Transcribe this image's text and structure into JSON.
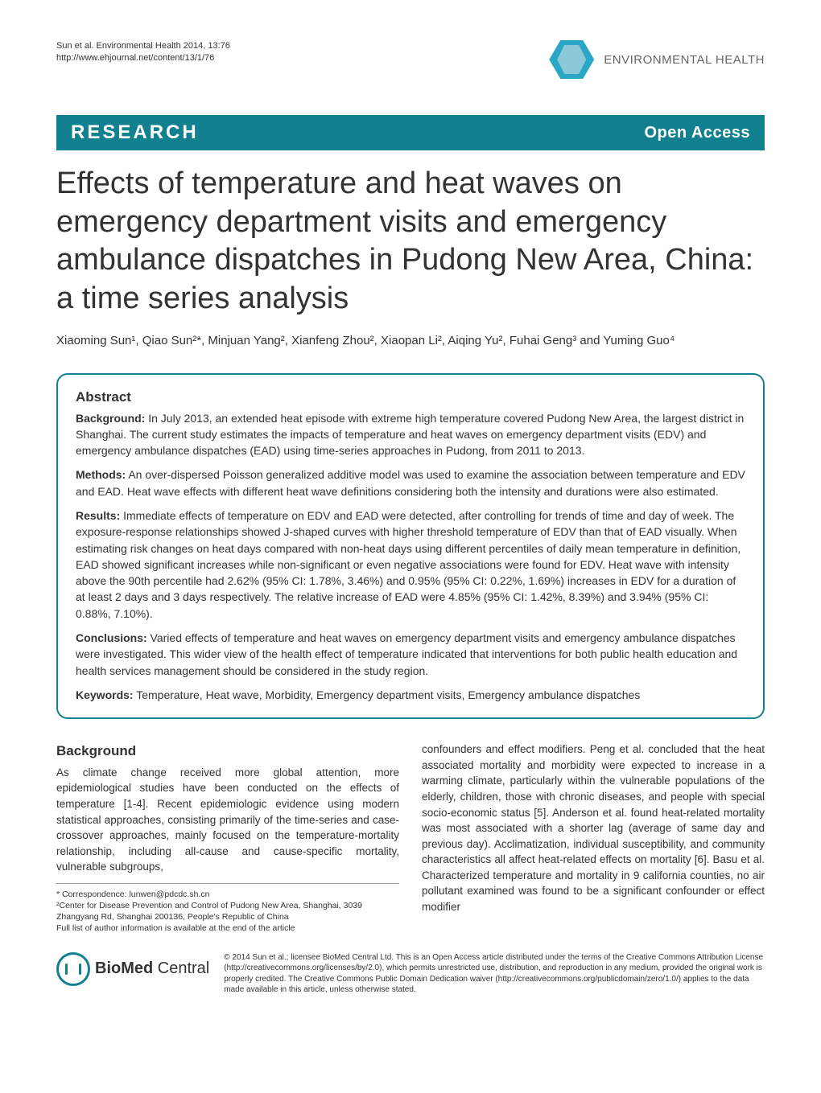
{
  "header": {
    "citation_line1": "Sun et al. Environmental Health 2014, 13:76",
    "citation_line2": "http://www.ehjournal.net/content/13/1/76",
    "journal_name": "ENVIRONMENTAL HEALTH"
  },
  "banner": {
    "left": "RESEARCH",
    "right": "Open Access"
  },
  "title": "Effects of temperature and heat waves on emergency department visits and emergency ambulance dispatches in Pudong New Area, China: a time series analysis",
  "authors_html": "Xiaoming Sun¹, Qiao Sun²*, Minjuan Yang², Xianfeng Zhou², Xiaopan Li², Aiqing Yu², Fuhai Geng³ and Yuming Guo⁴",
  "abstract": {
    "heading": "Abstract",
    "background_label": "Background:",
    "background_text": " In July 2013, an extended heat episode with extreme high temperature covered Pudong New Area, the largest district in Shanghai. The current study estimates the impacts of temperature and heat waves on emergency department visits (EDV) and emergency ambulance dispatches (EAD) using time-series approaches in Pudong, from 2011 to 2013.",
    "methods_label": "Methods:",
    "methods_text": " An over-dispersed Poisson generalized additive model was used to examine the association between temperature and EDV and EAD. Heat wave effects with different heat wave definitions considering both the intensity and durations were also estimated.",
    "results_label": "Results:",
    "results_text": " Immediate effects of temperature on EDV and EAD were detected, after controlling for trends of time and day of week. The exposure-response relationships showed J-shaped curves with higher threshold temperature of EDV than that of EAD visually. When estimating risk changes on heat days compared with non-heat days using different percentiles of daily mean temperature in definition, EAD showed significant increases while non-significant or even negative associations were found for EDV. Heat wave with intensity above the 90th percentile had 2.62% (95% CI: 1.78%, 3.46%) and 0.95% (95% CI: 0.22%, 1.69%) increases in EDV for a duration of at least 2 days and 3 days respectively. The relative increase of EAD were 4.85% (95% CI: 1.42%, 8.39%) and 3.94% (95% CI: 0.88%, 7.10%).",
    "conclusions_label": "Conclusions:",
    "conclusions_text": " Varied effects of temperature and heat waves on emergency department visits and emergency ambulance dispatches were investigated. This wider view of the health effect of temperature indicated that interventions for both public health education and health services management should be considered in the study region.",
    "keywords_label": "Keywords:",
    "keywords_text": " Temperature, Heat wave, Morbidity, Emergency department visits, Emergency ambulance dispatches"
  },
  "body": {
    "background_heading": "Background",
    "col1_p1": "As climate change received more global attention, more epidemiological studies have been conducted on the effects of temperature [1-4]. Recent epidemiologic evidence using modern statistical approaches, consisting primarily of the time-series and case-crossover approaches, mainly focused on the temperature-mortality relationship, including all-cause and cause-specific mortality, vulnerable subgroups,",
    "col2_p1": "confounders and effect modifiers. Peng et al. concluded that the heat associated mortality and morbidity were expected to increase in a warming climate, particularly within the vulnerable populations of the elderly, children, those with chronic diseases, and people with special socio-economic status [5]. Anderson et al. found heat-related mortality was most associated with a shorter lag (average of same day and previous day). Acclimatization, individual susceptibility, and community characteristics all affect heat-related effects on mortality [6]. Basu et al. Characterized temperature and mortality in 9 california counties, no air pollutant examined was found to be a significant confounder or effect modifier"
  },
  "footnotes": {
    "correspondence": "* Correspondence: lunwen@pdcdc.sh.cn",
    "affil2": "²Center for Disease Prevention and Control of Pudong New Area, Shanghai, 3039 Zhangyang Rd, Shanghai 200136, People's Republic of China",
    "affil_full": "Full list of author information is available at the end of the article"
  },
  "footer": {
    "bmc_text_1": "BioMed",
    "bmc_text_2": " Central",
    "license": "© 2014 Sun et al.; licensee BioMed Central Ltd. This is an Open Access article distributed under the terms of the Creative Commons Attribution License (http://creativecommons.org/licenses/by/2.0), which permits unrestricted use, distribution, and reproduction in any medium, provided the original work is properly credited. The Creative Commons Public Domain Dedication waiver (http://creativecommons.org/publicdomain/zero/1.0/) applies to the data made available in this article, unless otherwise stated."
  },
  "colors": {
    "brand_teal": "#12818f",
    "logo_blue": "#2aa7c4",
    "text": "#333333",
    "background": "#ffffff"
  }
}
